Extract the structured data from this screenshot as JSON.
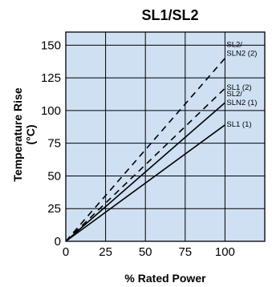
{
  "chart_data": {
    "type": "line",
    "title": "SL1/SL2",
    "xlabel": "% Rated Power",
    "ylabel_lines": [
      "Temperature Rise",
      "(°C)"
    ],
    "xlim": [
      0,
      125
    ],
    "ylim": [
      0,
      160
    ],
    "x_ticks": [
      0,
      25,
      50,
      75,
      100
    ],
    "y_ticks": [
      0,
      25,
      50,
      75,
      100,
      125,
      150
    ],
    "grid": true,
    "colors": {
      "plot_background": "#cfe0f3",
      "grid": "#000000",
      "line": "#000000"
    },
    "series": [
      {
        "name_lines": [
          "SL2/",
          "SLN2 (2)"
        ],
        "style": "dashed",
        "x": [
          0,
          100
        ],
        "y": [
          0,
          140
        ]
      },
      {
        "name_lines": [
          "SL1 (2)"
        ],
        "style": "dashed",
        "x": [
          0,
          100
        ],
        "y": [
          0,
          117
        ]
      },
      {
        "name_lines": [
          "SL2/",
          "SLN2 (1)"
        ],
        "style": "solid",
        "x": [
          0,
          100
        ],
        "y": [
          0,
          106
        ]
      },
      {
        "name_lines": [
          "SL1 (1)"
        ],
        "style": "solid",
        "x": [
          0,
          100
        ],
        "y": [
          0,
          89
        ]
      }
    ]
  }
}
